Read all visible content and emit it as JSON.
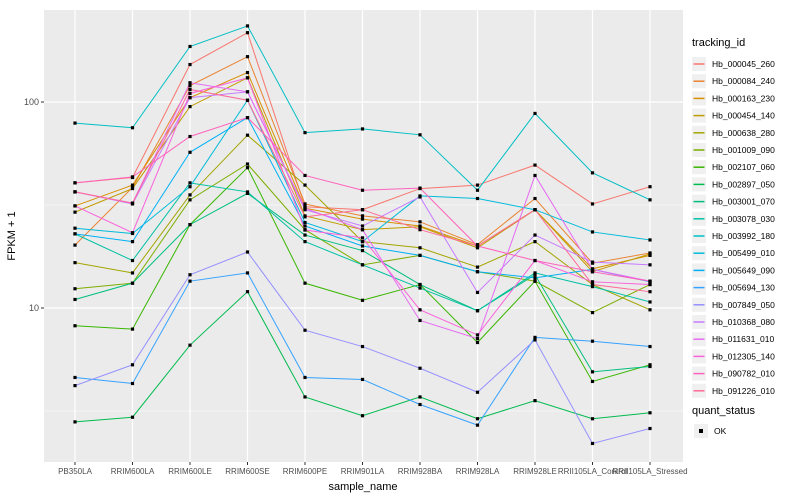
{
  "chart_data": {
    "type": "line",
    "title": "",
    "xlabel": "sample_name",
    "ylabel": "FPKM + 1",
    "y_scale": "log10",
    "y_tick_labels": [
      "100",
      "10"
    ],
    "y_major_ticks": [
      100,
      10
    ],
    "y_minor_ticks": [
      31.62,
      3.162
    ],
    "ylim": [
      1.8,
      280
    ],
    "grid": "on",
    "legend_position": "right",
    "legend_title": "tracking_id",
    "quant_legend_title": "quant_status",
    "quant_ok_label": "OK",
    "point_marker": "black-square",
    "x_categories": [
      "PB350LA",
      "RRIM600LA",
      "RRIM600LE",
      "RRIM600SE",
      "RRIM600PE",
      "RRIM901LA",
      "RRIM928BA",
      "RRIM928LA",
      "RRIM928LE",
      "RRII105LA_Control",
      "RRII105LA_Stressed"
    ],
    "series": [
      {
        "name": "Hb_000045_260",
        "color": "#F8766D",
        "values": [
          40.5,
          43,
          152,
          217,
          31,
          30,
          38,
          39.5,
          49.4,
          32,
          38.8
        ]
      },
      {
        "name": "Hb_000084_240",
        "color": "#EA8331",
        "values": [
          20.2,
          38.5,
          120,
          166,
          32,
          28,
          26.2,
          20.3,
          34,
          16.5,
          18.5
        ]
      },
      {
        "name": "Hb_000163_230",
        "color": "#D89000",
        "values": [
          31.3,
          39.5,
          105,
          139,
          30.5,
          27,
          25,
          20,
          30,
          15.5,
          18
        ]
      },
      {
        "name": "Hb_000454_140",
        "color": "#C09B00",
        "values": [
          29.2,
          38,
          95,
          131,
          28,
          24,
          24.8,
          19.6,
          30,
          15,
          18.3
        ]
      },
      {
        "name": "Hb_000638_280",
        "color": "#A3A500",
        "values": [
          16.6,
          14.8,
          35.4,
          69,
          39.5,
          21,
          19.6,
          15.8,
          21,
          13,
          9.8
        ]
      },
      {
        "name": "Hb_001009_090",
        "color": "#7CAE00",
        "values": [
          12.4,
          13.2,
          33.5,
          50,
          24,
          16.2,
          18,
          15,
          13.5,
          9.5,
          13
        ]
      },
      {
        "name": "Hb_002107_060",
        "color": "#39B600",
        "values": [
          8.2,
          7.9,
          25.4,
          48,
          13.2,
          10.9,
          13,
          6.8,
          13.5,
          4.4,
          5.3
        ]
      },
      {
        "name": "Hb_002897_050",
        "color": "#00BB4E",
        "values": [
          2.8,
          2.95,
          6.6,
          12,
          3.7,
          3.0,
          3.7,
          2.9,
          3.55,
          2.9,
          3.1
        ]
      },
      {
        "name": "Hb_003001_070",
        "color": "#00BF7D",
        "values": [
          11,
          13.2,
          25.4,
          36,
          22.6,
          19,
          13,
          9.7,
          14.5,
          4.9,
          5.2
        ]
      },
      {
        "name": "Hb_003078_030",
        "color": "#00C1A3",
        "values": [
          22.9,
          17,
          40.5,
          36.6,
          21,
          16.2,
          12.5,
          9.7,
          14.8,
          12.7,
          10.7
        ]
      },
      {
        "name": "Hb_003992_180",
        "color": "#00BFC4",
        "values": [
          79,
          75,
          186,
          234,
          71,
          74,
          69.3,
          37.3,
          88,
          45.3,
          33.5
        ]
      },
      {
        "name": "Hb_005499_010",
        "color": "#00BBDA",
        "values": [
          24.4,
          23,
          38.8,
          102,
          26,
          21,
          35,
          34,
          30,
          23.4,
          21.4
        ]
      },
      {
        "name": "Hb_005649_090",
        "color": "#00B0F6",
        "values": [
          22.9,
          21,
          57,
          84,
          25,
          20,
          18,
          15,
          14,
          15.4,
          13.4
        ]
      },
      {
        "name": "Hb_005694_130",
        "color": "#35A2FF",
        "values": [
          4.6,
          4.3,
          13.5,
          14.8,
          4.6,
          4.5,
          3.4,
          2.7,
          7.2,
          6.9,
          6.5
        ]
      },
      {
        "name": "Hb_007849_050",
        "color": "#9590FF",
        "values": [
          4.2,
          5.3,
          14.5,
          18.7,
          7.8,
          6.5,
          5.1,
          3.9,
          7.0,
          2.2,
          2.6
        ]
      },
      {
        "name": "Hb_010368_080",
        "color": "#C77CFF",
        "values": [
          36.6,
          32,
          105,
          112,
          30,
          25,
          34.6,
          11.9,
          22.6,
          16.7,
          16.2
        ]
      },
      {
        "name": "Hb_011631_010",
        "color": "#E76BF3",
        "values": [
          36.6,
          32.3,
          124,
          112,
          30.5,
          24,
          8.7,
          7.1,
          44,
          15.4,
          13.5
        ]
      },
      {
        "name": "Hb_012305_140",
        "color": "#FA62DB",
        "values": [
          31.3,
          23.2,
          110,
          131,
          23.9,
          21.9,
          9.8,
          7.4,
          17,
          13.4,
          13
        ]
      },
      {
        "name": "Hb_090782_010",
        "color": "#FF62BC",
        "values": [
          40.5,
          43.3,
          68,
          84,
          44,
          37.3,
          38.2,
          20,
          17,
          15,
          13.5
        ]
      },
      {
        "name": "Hb_091226_010",
        "color": "#FF6A98",
        "values": [
          36.6,
          32.3,
          115,
          102,
          27.7,
          30,
          24,
          20,
          30,
          13,
          12
        ]
      }
    ]
  },
  "colors": {
    "panel_bg": "#EBEBEB",
    "grid": "#FFFFFF",
    "tick_mark": "#333333",
    "tick_label": "#4D4D4D",
    "legend_key_bg": "#F0F0F0",
    "point": "#000000",
    "page_bg": "#FFFFFF"
  }
}
